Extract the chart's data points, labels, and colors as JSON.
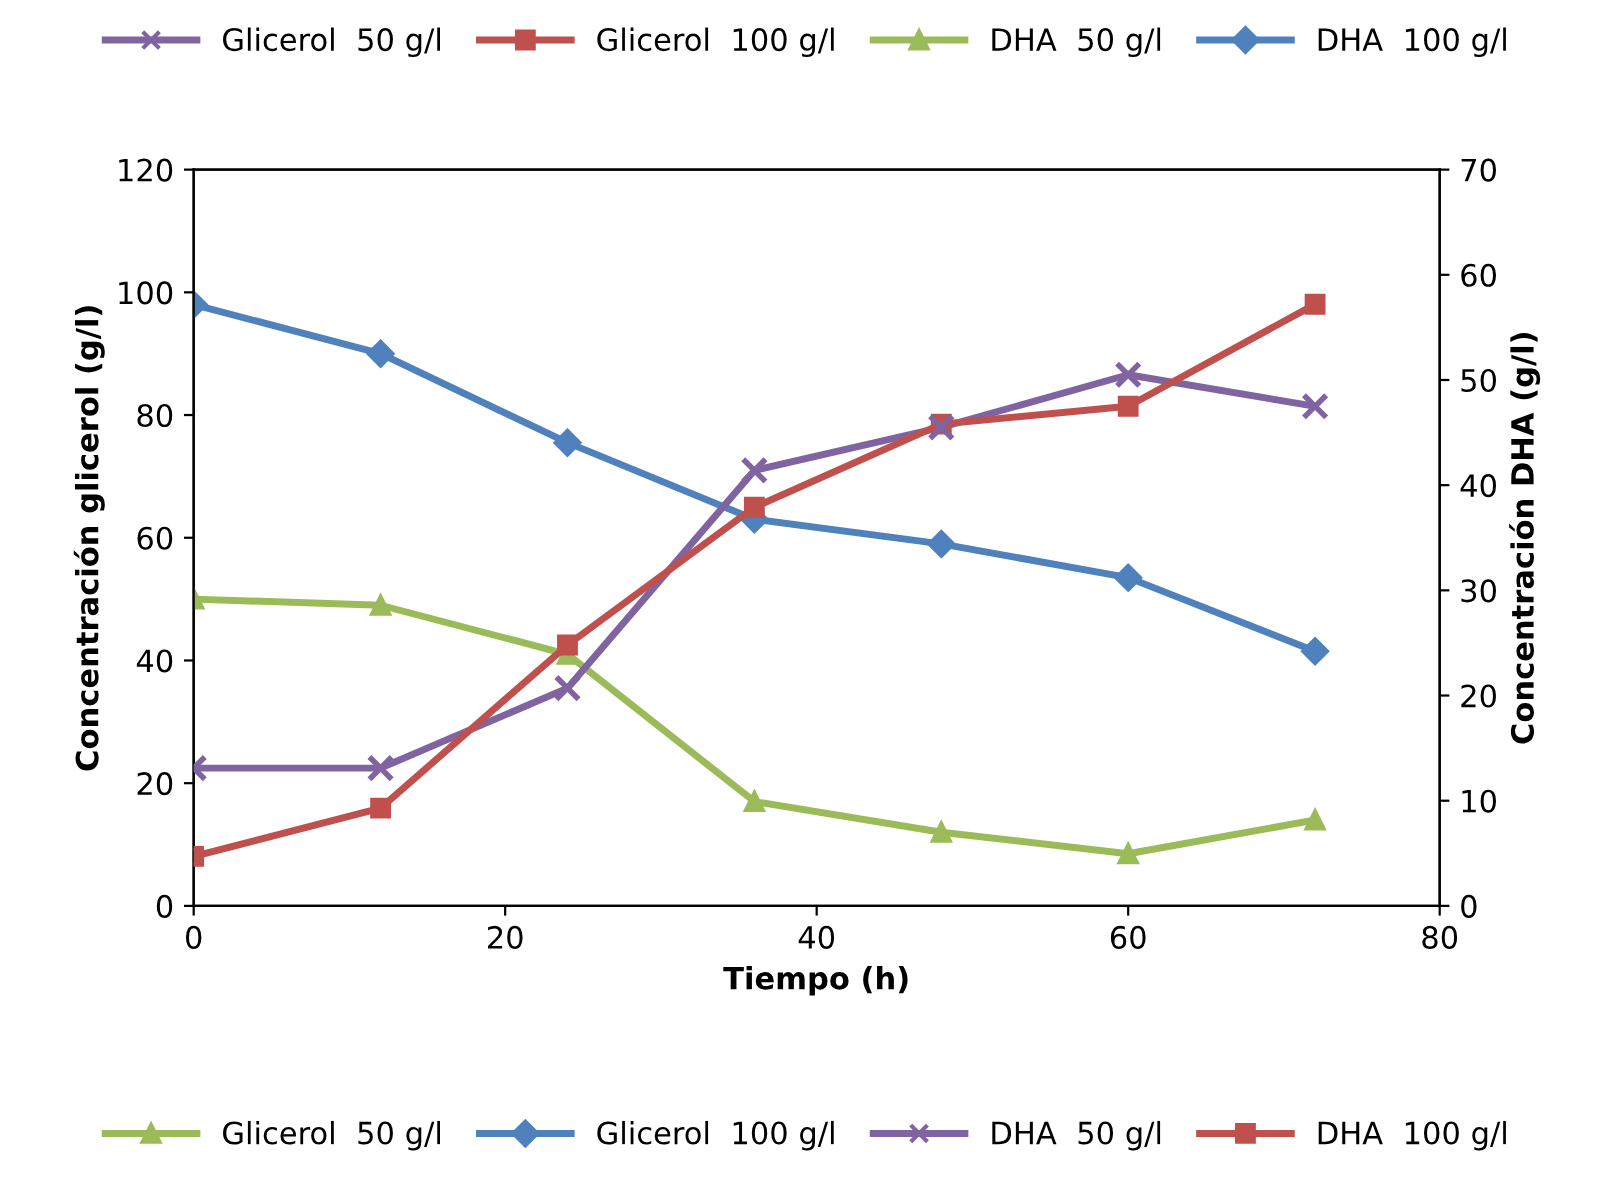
{
  "chart_data": {
    "type": "line",
    "xlabel": "Tiempo (h)",
    "ylabel": "Concentración glicerol (g/l)",
    "y2label": "Concentración DHA (g/l)",
    "x": [
      0,
      12,
      24,
      36,
      48,
      60,
      72
    ],
    "series": [
      {
        "name": "Glicerol  50 g/l",
        "color": "#9bbb59",
        "marker": "triangle",
        "values": [
          50,
          49,
          41,
          17,
          12,
          8.5,
          14
        ]
      },
      {
        "name": "Glicerol  100 g/l",
        "color": "#4f81bd",
        "marker": "diamond",
        "values": [
          98,
          90,
          75.5,
          63,
          59,
          53.5,
          41.5
        ]
      },
      {
        "name": "DHA  50 g/l",
        "color": "#8064a2",
        "marker": "cross",
        "axis": "y2",
        "values": [
          13.1,
          13.1,
          20.7,
          41.4,
          45.5,
          50.5,
          47.5
        ]
      },
      {
        "name": "DHA  100 g/l",
        "color": "#c0504d",
        "marker": "square",
        "axis": "y2",
        "values": [
          4.7,
          9.3,
          24.8,
          37.9,
          45.8,
          47.5,
          57.2
        ]
      }
    ],
    "annotations": [
      "Glicerol  50 g/l",
      "Glicerol  100 g/l",
      "DHA  50 g/l",
      "DHA  100 g/l"
    ],
    "xlim": [
      0,
      80
    ],
    "xticks": [
      0,
      20,
      40,
      60,
      80
    ],
    "ylim": [
      0,
      120
    ],
    "yticks": [
      0,
      20,
      40,
      60,
      80,
      100,
      120
    ],
    "y2lim": [
      0,
      70
    ],
    "y2ticks": [
      0,
      10,
      20,
      30,
      40,
      50,
      60,
      70
    ],
    "grid": false,
    "legend": "bottom"
  }
}
